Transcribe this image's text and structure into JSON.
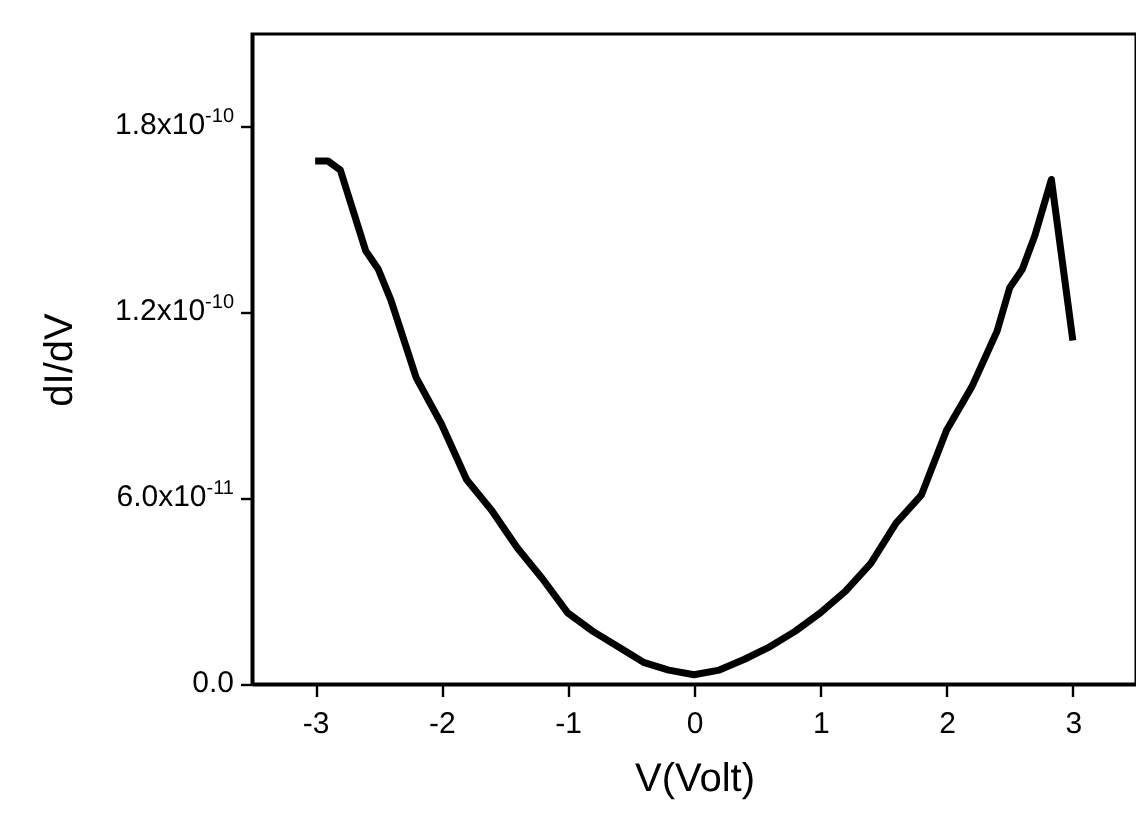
{
  "chart_data": {
    "type": "line",
    "xlabel": "V(Volt)",
    "ylabel": "dI/dV",
    "xlim": [
      -3.5,
      3.5
    ],
    "xticks": [
      -3,
      -2,
      -1,
      0,
      1,
      2,
      3
    ],
    "ylim": [
      0,
      2.1e-10
    ],
    "yticks": [
      {
        "value": 0,
        "label": "0.0"
      },
      {
        "value": 6e-11,
        "label": "6.0x10$^{-11}$"
      },
      {
        "value": 1.2e-10,
        "label": "1.2x10$^{-10}$"
      },
      {
        "value": 1.8e-10,
        "label": "1.8x10$^{-10}$"
      }
    ],
    "grid": false,
    "marker": "none",
    "line_style": "solid",
    "x": [
      -3,
      -2.9,
      -2.8,
      -2.6,
      -2.5,
      -2.4,
      -2.2,
      -2.0,
      -1.8,
      -1.6,
      -1.4,
      -1.2,
      -1.0,
      -0.8,
      -0.6,
      -0.4,
      -0.2,
      0,
      0.2,
      0.4,
      0.6,
      0.8,
      1.0,
      1.2,
      1.4,
      1.6,
      1.8,
      2.0,
      2.2,
      2.4,
      2.5,
      2.6,
      2.7,
      2.83,
      3.0
    ],
    "series": [
      {
        "color": "#000000",
        "values": [
          1.69e-10,
          1.69e-10,
          1.66e-10,
          1.4e-10,
          1.34e-10,
          1.24e-10,
          9.9e-11,
          8.4e-11,
          6.6e-11,
          5.6e-11,
          4.4e-11,
          3.4e-11,
          2.3e-11,
          1.7e-11,
          1.2e-11,
          7e-12,
          4.5e-12,
          3e-12,
          4.5e-12,
          8e-12,
          1.2e-11,
          1.7e-11,
          2.3e-11,
          3e-11,
          3.9e-11,
          5.2e-11,
          6.1e-11,
          8.2e-11,
          9.6e-11,
          1.14e-10,
          1.28e-10,
          1.34e-10,
          1.45e-10,
          1.63e-10,
          1.11e-10
        ]
      }
    ]
  }
}
